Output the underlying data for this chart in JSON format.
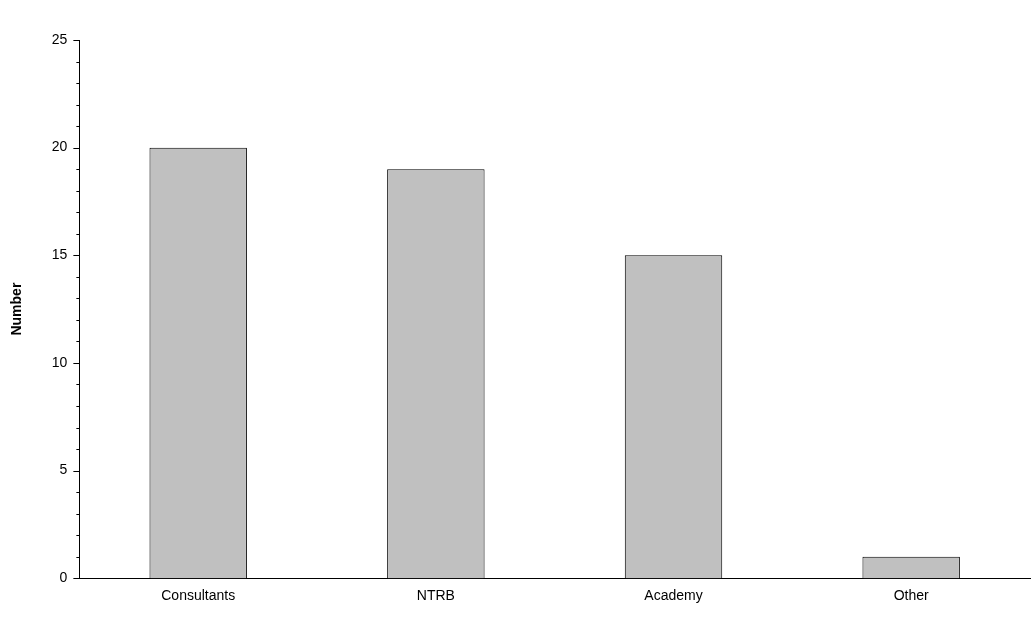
{
  "chart_data": {
    "type": "bar",
    "ylabel": "Number",
    "categories": [
      "Consultants",
      "NTRB",
      "Academy",
      "Other"
    ],
    "values": [
      20,
      19,
      15,
      1
    ],
    "color": "#c0c0c0",
    "ylim": [
      0,
      25
    ],
    "yticks": [
      0,
      {
        "value": 1,
        "label": null
      },
      {
        "value": 2,
        "label": null
      },
      {
        "value": 3,
        "label": null
      },
      {
        "value": 4,
        "label": null
      },
      5,
      {
        "value": 6,
        "label": null
      },
      {
        "value": 7,
        "label": null
      },
      {
        "value": 8,
        "label": null
      },
      {
        "value": 9,
        "label": null
      },
      10,
      {
        "value": 11,
        "label": null
      },
      {
        "value": 12,
        "label": null
      },
      {
        "value": 13,
        "label": null
      },
      {
        "value": 14,
        "label": null
      },
      15,
      {
        "value": 16,
        "label": null
      },
      {
        "value": 17,
        "label": null
      },
      {
        "value": 18,
        "label": null
      },
      {
        "value": 19,
        "label": null
      },
      20,
      {
        "value": 21,
        "label": null
      },
      {
        "value": 22,
        "label": null
      },
      {
        "value": 23,
        "label": null
      },
      {
        "value": 24,
        "label": null
      },
      25
    ],
    "grid": false,
    "legend": false
  }
}
